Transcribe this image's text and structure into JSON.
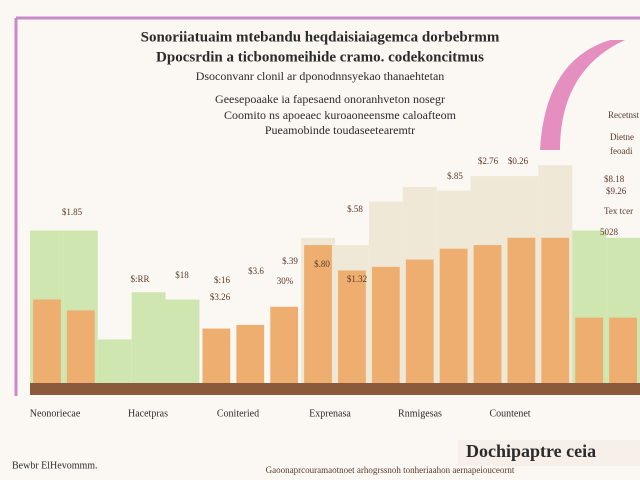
{
  "chart_data": {
    "type": "bar",
    "title_lines": [
      "Sonoriiatuaim mtebandu heqdaisiaiagemca dorbebrmm",
      "Dpocsrdin a ticbonomeihide cramo. codekoncitmus",
      "Dsoconvanr clonil ar dponodnnsyekao thanaehtetan"
    ],
    "subtitle_lines": [
      "Geesepoaake ia fapesaend onoranhveton nosegr",
      "Coomito ns apoeaec kuroaoneensme caloafteom",
      "Pueamobinde toudaseetearemtr"
    ],
    "categories": [
      null,
      null,
      null,
      null,
      null,
      null,
      null,
      null,
      null,
      null,
      null,
      null,
      null,
      null,
      null,
      null,
      null,
      null
    ],
    "series": [
      {
        "name": "Background",
        "color": "#efe8d6",
        "values": [
          null,
          null,
          null,
          null,
          null,
          null,
          null,
          null,
          40,
          38,
          50,
          54,
          53,
          57,
          57,
          60,
          null,
          null
        ]
      },
      {
        "name": "Green",
        "color": "#cfe6b0",
        "values": [
          42,
          42,
          12,
          25,
          23,
          null,
          null,
          null,
          null,
          null,
          null,
          null,
          null,
          null,
          null,
          null,
          42,
          40
        ]
      },
      {
        "name": "Orange",
        "color": "#eeae70",
        "values": [
          23,
          20,
          null,
          null,
          null,
          15,
          16,
          21,
          38,
          31,
          32,
          34,
          37,
          38,
          40,
          40,
          18,
          18
        ]
      }
    ],
    "group_labels": [
      "Neonoriecae",
      "Hacetpras",
      "Coniteried",
      "Exprenasa",
      "Rnmigesas",
      "Countenet"
    ],
    "annotations": [
      "$1.85",
      "$:RR",
      "$18",
      "$:16",
      "$3.6",
      "$.39",
      "30%",
      "$3.26",
      "$.80",
      "$1.32",
      "$.58",
      "$.85",
      "$2.76",
      "$0.26"
    ],
    "side_notes": [
      "Recetnst",
      "Dietne",
      "feoadi",
      "$8.18",
      "$9.26",
      "Tex tcer",
      "5028"
    ],
    "footer_left": "Bewbr ElHevommm.",
    "footer_center": "Gaoonaprcouramaotnoet arhogrssnoh tonheriaahon aernapeiouceornt",
    "footer_right": "Dochipaptre ceia",
    "ylim": [
      0,
      100
    ]
  }
}
